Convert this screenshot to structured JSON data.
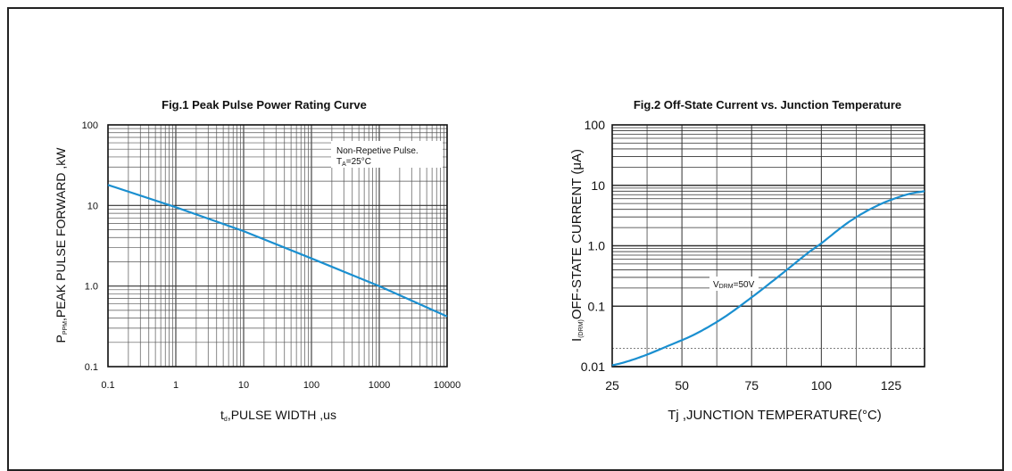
{
  "chart_data": [
    {
      "type": "line",
      "title": "Fig.1  Peak Pulse Power Rating Curve",
      "xlabel": "t",
      "xlabel_sub": "d",
      "xlabel_rest": ",PULSE WIDTH ,us",
      "ylabel": "P",
      "ylabel_sub": "PPM",
      "ylabel_rest": ",PEAK PULSE  FORWARD ,kW",
      "x_scale": "log",
      "y_scale": "log",
      "xlim": [
        0.1,
        10000
      ],
      "ylim": [
        0.1,
        100
      ],
      "x_ticks": [
        "0.1",
        "1",
        "10",
        "100",
        "1000",
        "10000"
      ],
      "y_ticks": [
        "0.1",
        "1.0",
        "10",
        "100"
      ],
      "grid": true,
      "annotation_line1": "Non-Repetive  Pulse.",
      "annotation_line2_main": "T",
      "annotation_line2_sub": "A",
      "annotation_line2_rest": "=25°C",
      "series": [
        {
          "color": "#1a8fd0",
          "x": [
            0.1,
            1,
            10,
            100,
            1000,
            10000
          ],
          "y": [
            18,
            9.5,
            4.8,
            2.2,
            1.0,
            0.42
          ]
        }
      ]
    },
    {
      "type": "line",
      "title": "Fig.2  Off-State Current vs. Junction Temperature",
      "xlabel": "Tj ,JUNCTION TEMPERATURE(°C)",
      "ylabel": "I",
      "ylabel_sub": "(DRM)",
      "ylabel_rest": "OFF-STATE CURRENT (μA)",
      "x_scale": "linear",
      "y_scale": "log",
      "xlim": [
        25,
        137
      ],
      "ylim": [
        0.01,
        100
      ],
      "x_ticks": [
        "25",
        "50",
        "75",
        "100",
        "125"
      ],
      "y_ticks": [
        "0.01",
        "0.1",
        "1.0",
        "10",
        "100"
      ],
      "grid": true,
      "annotation_main": "V",
      "annotation_sub": "DRM",
      "annotation_rest": "=50V",
      "series": [
        {
          "color": "#1a8fd0",
          "x": [
            25,
            30,
            37,
            45,
            55,
            65,
            75,
            85,
            95,
            100,
            110,
            120,
            130,
            137
          ],
          "y": [
            0.0105,
            0.012,
            0.0155,
            0.022,
            0.035,
            0.065,
            0.14,
            0.32,
            0.75,
            1.1,
            2.5,
            4.6,
            6.9,
            8.0
          ]
        }
      ]
    }
  ]
}
